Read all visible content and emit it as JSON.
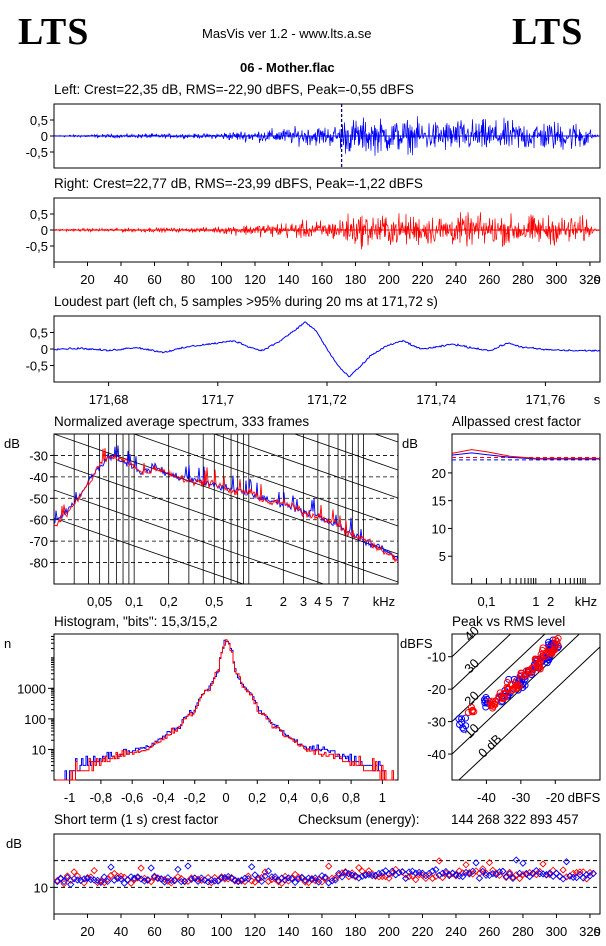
{
  "header": {
    "logo_left": "LTS",
    "logo_right": "LTS",
    "app_title": "MasVis ver 1.2 - www.lts.a.se",
    "file_name": "06 - Mother.flac"
  },
  "colors": {
    "left": "#0000ff",
    "right": "#ff0000"
  },
  "panels": {
    "left_title": "Left: Crest=22,35 dB, RMS=-22,90 dBFS, Peak=-0,55 dBFS",
    "right_title": "Right: Crest=22,77 dB, RMS=-23,99 dBFS, Peak=-1,22 dBFS",
    "loudest_title": "Loudest part (left  ch, 5 samples >95% during 20 ms at 171,72 s)",
    "spectrum_title": "Normalized average spectrum, 333 frames",
    "allpass_title": "Allpassed crest factor",
    "histogram_title": "Histogram, \"bits\": 15,3/15,2",
    "peakrms_title": "Peak vs RMS level",
    "crest_title": "Short term (1 s) crest factor",
    "checksum_label": "Checksum (energy):",
    "checksum_value": "144 268 322 893 457"
  },
  "chart_data": [
    {
      "id": "left-waveform",
      "type": "line",
      "title": "Left: Crest=22,35 dB, RMS=-22,90 dBFS, Peak=-0,55 dBFS",
      "series": [
        {
          "name": "Left",
          "color": "#0000ff"
        }
      ],
      "xlim": [
        0,
        326
      ],
      "ylim": [
        -1,
        1
      ],
      "yticks": [
        "0,5",
        "0",
        "-0,5"
      ],
      "marker_x": 171.72,
      "envelope": [
        [
          0,
          0.04
        ],
        [
          20,
          0.08
        ],
        [
          40,
          0.1
        ],
        [
          60,
          0.12
        ],
        [
          80,
          0.1
        ],
        [
          95,
          0.14
        ],
        [
          100,
          0.2
        ],
        [
          110,
          0.26
        ],
        [
          120,
          0.3
        ],
        [
          130,
          0.36
        ],
        [
          140,
          0.42
        ],
        [
          150,
          0.48
        ],
        [
          160,
          0.52
        ],
        [
          170,
          0.55
        ],
        [
          172,
          0.92
        ],
        [
          190,
          0.9
        ],
        [
          210,
          0.85
        ],
        [
          230,
          0.82
        ],
        [
          250,
          0.85
        ],
        [
          270,
          0.8
        ],
        [
          290,
          0.78
        ],
        [
          310,
          0.75
        ],
        [
          318,
          0.7
        ],
        [
          322,
          0.1
        ],
        [
          326,
          0.02
        ]
      ]
    },
    {
      "id": "right-waveform",
      "type": "line",
      "title": "Right: Crest=22,77 dB, RMS=-23,99 dBFS, Peak=-1,22 dBFS",
      "series": [
        {
          "name": "Right",
          "color": "#ff0000"
        }
      ],
      "xlim": [
        0,
        326
      ],
      "ylim": [
        -1,
        1
      ],
      "xticks": [
        "20",
        "40",
        "60",
        "80",
        "100",
        "120",
        "140",
        "160",
        "180",
        "200",
        "220",
        "240",
        "260",
        "280",
        "300",
        "320"
      ],
      "xunit": "s",
      "yticks": [
        "0,5",
        "0",
        "-0,5"
      ],
      "envelope": [
        [
          0,
          0.04
        ],
        [
          20,
          0.08
        ],
        [
          40,
          0.1
        ],
        [
          60,
          0.12
        ],
        [
          80,
          0.1
        ],
        [
          95,
          0.14
        ],
        [
          100,
          0.2
        ],
        [
          110,
          0.26
        ],
        [
          120,
          0.3
        ],
        [
          130,
          0.36
        ],
        [
          140,
          0.42
        ],
        [
          150,
          0.46
        ],
        [
          160,
          0.5
        ],
        [
          170,
          0.52
        ],
        [
          172,
          0.82
        ],
        [
          190,
          0.85
        ],
        [
          210,
          0.8
        ],
        [
          230,
          0.78
        ],
        [
          250,
          0.82
        ],
        [
          270,
          0.78
        ],
        [
          290,
          0.76
        ],
        [
          310,
          0.72
        ],
        [
          318,
          0.68
        ],
        [
          322,
          0.1
        ],
        [
          326,
          0.02
        ]
      ]
    },
    {
      "id": "loudest-part",
      "type": "line",
      "title": "Loudest part (left  ch, 5 samples >95% during 20 ms at 171,72 s)",
      "series": [
        {
          "name": "Left",
          "color": "#0000ff"
        }
      ],
      "xlim": [
        171.67,
        171.77
      ],
      "ylim": [
        -1,
        1
      ],
      "xticks": [
        "171,68",
        "171,7",
        "171,72",
        "171,74",
        "171,76"
      ],
      "xunit": "s",
      "yticks": [
        "0,5",
        "0",
        "-0,5"
      ],
      "points": [
        [
          171.67,
          0
        ],
        [
          171.675,
          0.02
        ],
        [
          171.68,
          -0.05
        ],
        [
          171.685,
          0.05
        ],
        [
          171.69,
          -0.1
        ],
        [
          171.695,
          0.08
        ],
        [
          171.7,
          0.18
        ],
        [
          171.703,
          0.25
        ],
        [
          171.706,
          0.05
        ],
        [
          171.708,
          -0.05
        ],
        [
          171.711,
          0.2
        ],
        [
          171.714,
          0.55
        ],
        [
          171.716,
          0.82
        ],
        [
          171.718,
          0.55
        ],
        [
          171.72,
          0
        ],
        [
          171.722,
          -0.5
        ],
        [
          171.724,
          -0.85
        ],
        [
          171.726,
          -0.55
        ],
        [
          171.728,
          -0.2
        ],
        [
          171.731,
          0.1
        ],
        [
          171.734,
          0.25
        ],
        [
          171.737,
          0.0
        ],
        [
          171.74,
          0.05
        ],
        [
          171.743,
          0.15
        ],
        [
          171.746,
          0.05
        ],
        [
          171.75,
          -0.05
        ],
        [
          171.753,
          0.18
        ],
        [
          171.756,
          0.05
        ],
        [
          171.76,
          -0.02
        ],
        [
          171.765,
          -0.05
        ],
        [
          171.77,
          -0.05
        ]
      ]
    },
    {
      "id": "spectrum",
      "type": "line",
      "title": "Normalized average spectrum, 333 frames",
      "ylabel": "dB",
      "xlabel": "kHz",
      "xscale": "log",
      "xlim": [
        0.02,
        20
      ],
      "ylim": [
        -90,
        -20
      ],
      "yticks": [
        "-30",
        "-40",
        "-50",
        "-60",
        "-70",
        "-80"
      ],
      "xticks": [
        "0,05",
        "0,1",
        "0,2",
        "0,5",
        "1",
        "2",
        "3",
        "4",
        "5",
        "7"
      ],
      "series": [
        {
          "name": "Left",
          "color": "#0000ff",
          "points": [
            [
              0.02,
              -62
            ],
            [
              0.03,
              -52
            ],
            [
              0.04,
              -42
            ],
            [
              0.05,
              -35
            ],
            [
              0.06,
              -30
            ],
            [
              0.08,
              -33
            ],
            [
              0.1,
              -36
            ],
            [
              0.12,
              -38
            ],
            [
              0.15,
              -35
            ],
            [
              0.2,
              -39
            ],
            [
              0.3,
              -41
            ],
            [
              0.5,
              -44
            ],
            [
              0.7,
              -46
            ],
            [
              1,
              -48
            ],
            [
              1.5,
              -51
            ],
            [
              2,
              -53
            ],
            [
              3,
              -56
            ],
            [
              5,
              -61
            ],
            [
              7,
              -65
            ],
            [
              10,
              -70
            ],
            [
              15,
              -74
            ],
            [
              20,
              -78
            ]
          ]
        },
        {
          "name": "Right",
          "color": "#ff0000",
          "points": [
            [
              0.02,
              -63
            ],
            [
              0.03,
              -53
            ],
            [
              0.04,
              -43
            ],
            [
              0.05,
              -34
            ],
            [
              0.06,
              -31
            ],
            [
              0.08,
              -32
            ],
            [
              0.1,
              -35
            ],
            [
              0.12,
              -39
            ],
            [
              0.15,
              -36
            ],
            [
              0.2,
              -38
            ],
            [
              0.3,
              -42
            ],
            [
              0.5,
              -43
            ],
            [
              0.7,
              -47
            ],
            [
              1,
              -47
            ],
            [
              1.5,
              -52
            ],
            [
              2,
              -52
            ],
            [
              3,
              -57
            ],
            [
              5,
              -60
            ],
            [
              7,
              -66
            ],
            [
              10,
              -69
            ],
            [
              15,
              -75
            ],
            [
              20,
              -79
            ]
          ]
        }
      ]
    },
    {
      "id": "allpass-crest",
      "type": "line",
      "title": "Allpassed crest factor",
      "ylabel": "dB",
      "xlabel": "kHz",
      "xscale": "log",
      "xlim": [
        0.02,
        20
      ],
      "ylim": [
        0,
        27
      ],
      "yticks": [
        "5",
        "10",
        "15",
        "20"
      ],
      "xticks": [
        "0,1",
        "1",
        "2"
      ],
      "reference_left": 22.35,
      "reference_right": 22.77,
      "series": [
        {
          "name": "Left",
          "color": "#0000ff",
          "points": [
            [
              0.02,
              23.2
            ],
            [
              0.05,
              23.6
            ],
            [
              0.1,
              23.3
            ],
            [
              0.3,
              22.8
            ],
            [
              1,
              22.5
            ],
            [
              20,
              22.5
            ]
          ]
        },
        {
          "name": "Right",
          "color": "#ff0000",
          "points": [
            [
              0.02,
              23.5
            ],
            [
              0.05,
              24.2
            ],
            [
              0.1,
              23.8
            ],
            [
              0.3,
              23.0
            ],
            [
              1,
              22.6
            ],
            [
              20,
              22.6
            ]
          ]
        }
      ]
    },
    {
      "id": "histogram",
      "type": "line",
      "title": "Histogram, \"bits\": 15,3/15,2",
      "ylabel": "n",
      "yscale": "log",
      "xlim": [
        -1.1,
        1.1
      ],
      "ylim": [
        1,
        60000
      ],
      "yticks": [
        "1000",
        "100",
        "10"
      ],
      "xticks": [
        "-1",
        "-0,8",
        "-0,6",
        "-0,4",
        "-0,2",
        "0",
        "0,2",
        "0,4",
        "0,6",
        "0,8",
        "1"
      ],
      "series": [
        {
          "name": "Left",
          "color": "#0000ff",
          "points": [
            [
              -1.05,
              1
            ],
            [
              -0.9,
              3
            ],
            [
              -0.7,
              6
            ],
            [
              -0.5,
              12
            ],
            [
              -0.4,
              25
            ],
            [
              -0.3,
              60
            ],
            [
              -0.2,
              200
            ],
            [
              -0.1,
              1200
            ],
            [
              -0.05,
              4000
            ],
            [
              0,
              40000
            ],
            [
              0.05,
              4000
            ],
            [
              0.1,
              1200
            ],
            [
              0.2,
              200
            ],
            [
              0.3,
              60
            ],
            [
              0.4,
              25
            ],
            [
              0.5,
              12
            ],
            [
              0.7,
              6
            ],
            [
              0.9,
              3
            ],
            [
              1.05,
              1
            ]
          ]
        },
        {
          "name": "Right",
          "color": "#ff0000",
          "points": [
            [
              -1.05,
              1
            ],
            [
              -0.9,
              2
            ],
            [
              -0.7,
              5
            ],
            [
              -0.5,
              10
            ],
            [
              -0.4,
              22
            ],
            [
              -0.3,
              55
            ],
            [
              -0.2,
              180
            ],
            [
              -0.1,
              1100
            ],
            [
              -0.05,
              3800
            ],
            [
              0,
              38000
            ],
            [
              0.05,
              3800
            ],
            [
              0.1,
              1100
            ],
            [
              0.2,
              180
            ],
            [
              0.3,
              55
            ],
            [
              0.4,
              22
            ],
            [
              0.5,
              10
            ],
            [
              0.7,
              5
            ],
            [
              0.9,
              2
            ],
            [
              1.05,
              1
            ]
          ]
        }
      ]
    },
    {
      "id": "peak-vs-rms",
      "type": "scatter",
      "title": "Peak vs RMS level",
      "ylabel": "dBFS",
      "xlabel": "dBFS",
      "xlim": [
        -50,
        -7
      ],
      "ylim": [
        -48,
        -3
      ],
      "yticks": [
        "-10",
        "-20",
        "-30",
        "-40"
      ],
      "xticks": [
        "-40",
        "-30",
        "-20"
      ],
      "diagonals": [
        "40",
        "30",
        "20",
        "10",
        "0 dB"
      ],
      "series": [
        {
          "name": "Left",
          "color": "#0000ff",
          "points": [
            [
              -47,
              -30
            ],
            [
              -40,
              -24
            ],
            [
              -36,
              -23
            ],
            [
              -34,
              -21
            ],
            [
              -32,
              -18
            ],
            [
              -30,
              -18
            ],
            [
              -28,
              -15
            ],
            [
              -26,
              -13
            ],
            [
              -24,
              -11
            ],
            [
              -22,
              -10
            ],
            [
              -21,
              -7
            ],
            [
              -20,
              -6
            ]
          ]
        },
        {
          "name": "Right",
          "color": "#ff0000",
          "points": [
            [
              -44,
              -27
            ],
            [
              -38,
              -25
            ],
            [
              -35,
              -22
            ],
            [
              -33,
              -20
            ],
            [
              -31,
              -19
            ],
            [
              -29,
              -16
            ],
            [
              -27,
              -14
            ],
            [
              -25,
              -12
            ],
            [
              -23,
              -9
            ],
            [
              -21,
              -8
            ],
            [
              -20,
              -5
            ]
          ]
        }
      ]
    },
    {
      "id": "short-term-crest",
      "type": "scatter",
      "title": "Short term (1 s) crest factor",
      "ylabel": "dB",
      "xlim": [
        0,
        326
      ],
      "ylim": [
        0,
        30
      ],
      "yticks": [
        "10"
      ],
      "xticks": [
        "20",
        "40",
        "60",
        "80",
        "100",
        "120",
        "140",
        "160",
        "180",
        "200",
        "220",
        "240",
        "260",
        "280",
        "300",
        "320"
      ],
      "xunit": "s",
      "dashed_levels": [
        10,
        20
      ]
    }
  ]
}
